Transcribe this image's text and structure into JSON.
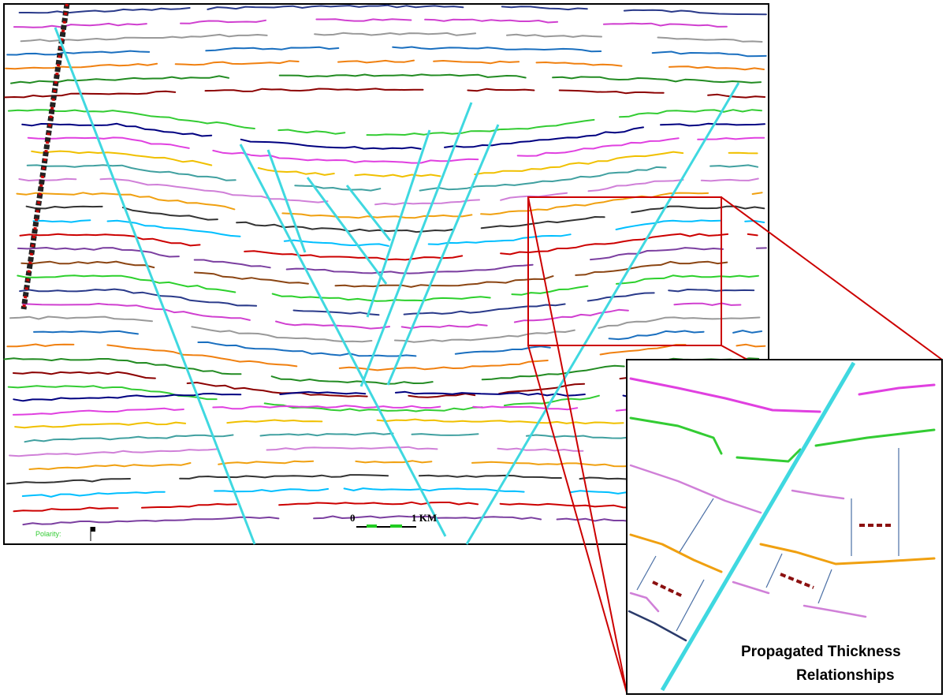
{
  "main_panel": {
    "polarity_label": "Polarity:",
    "scale_start": "0",
    "scale_end": "1 KM"
  },
  "zoom_panel": {
    "caption_line1": "Propagated Thickness",
    "caption_line2": "Relationships"
  }
}
